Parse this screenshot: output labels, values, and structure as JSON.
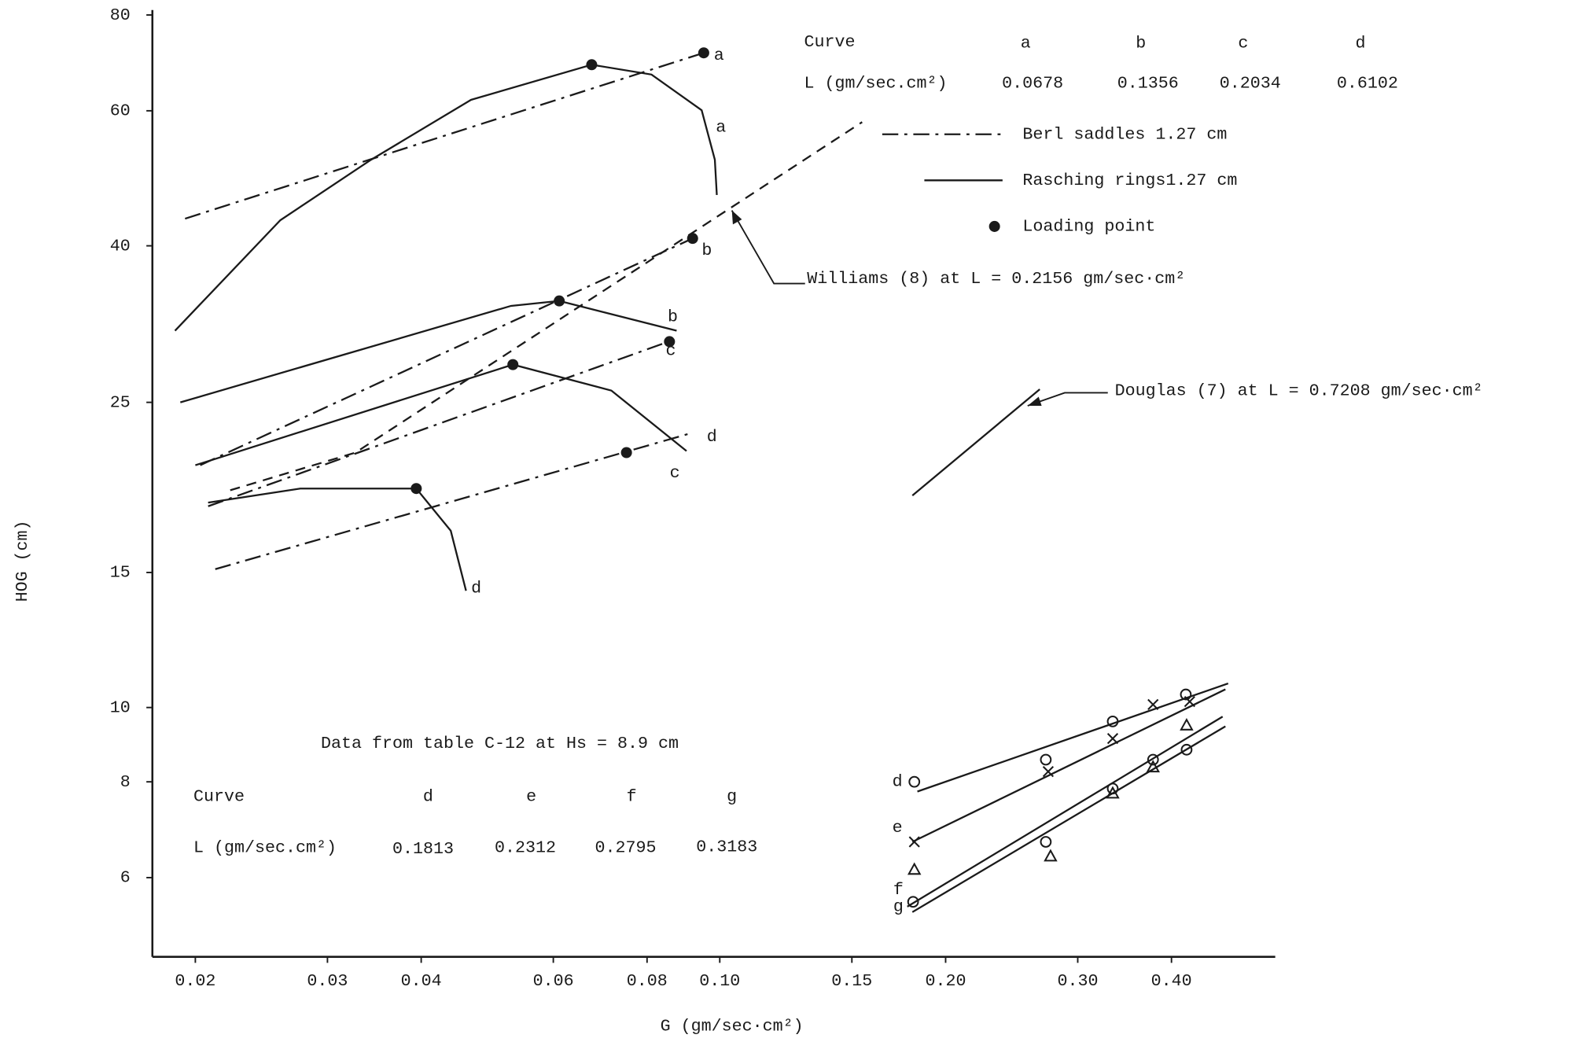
{
  "chart_data": {
    "type": "line",
    "xlabel": "G   (gm/sec·cm²)",
    "ylabel": "HOG (cm)",
    "xscale": "log",
    "yscale": "log",
    "color": "#1a1a1a",
    "xlim": [
      0.01753,
      0.55
    ],
    "ylim": [
      4.73,
      81.2
    ],
    "xticks": [
      0.02,
      0.03,
      0.04,
      0.06,
      0.08,
      {
        "value": 0.1,
        "label": "0.10"
      },
      0.15,
      {
        "value": 0.2,
        "label": "0.20"
      },
      {
        "value": 0.3,
        "label": "0.30"
      },
      {
        "value": 0.4,
        "label": "0.40"
      }
    ],
    "yticks": [
      80,
      60,
      40,
      25,
      15,
      10,
      8,
      6
    ],
    "series": [
      {
        "name": "a",
        "style": "dash-dot",
        "x": [
          0.01938,
          0.0952
        ],
        "values": [
          43.4,
          71.4
        ]
      },
      {
        "name": "b",
        "style": "dash-dot",
        "x": [
          0.0203,
          0.092
        ],
        "values": [
          20.7,
          40.9
        ]
      },
      {
        "name": "c",
        "style": "dash-dot",
        "x": [
          0.0208,
          0.0863
        ],
        "values": [
          18.3,
          30.1
        ]
      },
      {
        "name": "d",
        "style": "dash-dot",
        "x": [
          0.02126,
          0.0917
        ],
        "values": [
          15.15,
          22.8
        ]
      },
      {
        "name": "a",
        "style": "solid",
        "x": [
          0.01879,
          0.02596,
          0.0343,
          0.0466,
          0.0675,
          0.0811,
          0.0946,
          0.0985,
          0.0991
        ],
        "values": [
          31.0,
          43.2,
          51.8,
          62.0,
          68.9,
          66.9,
          60.1,
          51.8,
          46.6
        ]
      },
      {
        "name": "b",
        "style": "solid",
        "x": [
          0.0191,
          0.0527,
          0.0611,
          0.0876
        ],
        "values": [
          25.0,
          33.4,
          33.9,
          31.0
        ]
      },
      {
        "name": "c",
        "style": "solid",
        "x": [
          0.02,
          0.053,
          0.0717,
          0.0903
        ],
        "values": [
          20.7,
          28.0,
          25.9,
          21.6
        ]
      },
      {
        "name": "d",
        "style": "solid",
        "x": [
          0.0208,
          0.0276,
          0.0394,
          0.0438,
          0.0459
        ],
        "values": [
          18.5,
          19.3,
          19.3,
          17.0,
          14.2
        ]
      },
      {
        "style": "dashed",
        "x": [
          0.02226,
          0.0327,
          0.1548
        ],
        "values": [
          19.2,
          21.5,
          58.0
        ]
      },
      {
        "style": "solid",
        "x": [
          0.1806,
          0.267
        ],
        "values": [
          18.9,
          26.0
        ]
      },
      {
        "name": "d",
        "style": "solid",
        "x": [
          0.1834,
          0.476
        ],
        "values": [
          7.77,
          10.75
        ]
      },
      {
        "name": "e",
        "style": "solid",
        "x": [
          0.1806,
          0.472
        ],
        "values": [
          6.68,
          10.56
        ]
      },
      {
        "name": "f",
        "style": "solid",
        "x": [
          0.1778,
          0.468
        ],
        "values": [
          5.5,
          9.73
        ]
      },
      {
        "name": "g",
        "style": "solid",
        "x": [
          0.1806,
          0.472
        ],
        "values": [
          5.41,
          9.45
        ]
      },
      {
        "marker": "dot",
        "x": [
          0.0952,
          0.0675,
          0.092,
          0.0611,
          0.0857,
          0.053,
          0.0751,
          0.0394
        ],
        "values": [
          71.4,
          68.9,
          40.9,
          33.9,
          30.0,
          28.0,
          21.5,
          19.3
        ]
      },
      {
        "marker": "circle",
        "x": [
          0.1817,
          0.272,
          0.334,
          0.418
        ],
        "values": [
          8.0,
          8.55,
          9.59,
          10.4
        ]
      },
      {
        "marker": "cross",
        "x": [
          0.1817,
          0.274,
          0.334,
          0.378,
          0.423
        ],
        "values": [
          6.68,
          8.25,
          9.11,
          10.09,
          10.18
        ]
      },
      {
        "marker": "triangle",
        "x": [
          0.1817,
          0.276,
          0.334,
          0.378,
          0.419
        ],
        "values": [
          6.14,
          6.39,
          7.72,
          8.35,
          9.47
        ]
      },
      {
        "marker": "circle",
        "x": [
          0.181,
          0.272,
          0.334,
          0.378,
          0.419
        ],
        "values": [
          5.58,
          6.68,
          7.84,
          8.55,
          8.81
        ]
      }
    ],
    "legend": [
      {
        "label": "Berl saddles  1.27 cm",
        "style": "dash-dot"
      },
      {
        "label": "Rasching rings1.27 cm",
        "style": "solid"
      },
      {
        "label": "Loading point",
        "marker": "dot"
      }
    ],
    "table_top": {
      "header": "Curve",
      "curves": [
        "a",
        "b",
        "c",
        "d"
      ],
      "row_label": "L (gm/sec.cm²)",
      "row": [
        "0.0678",
        "0.1356",
        "0.2034",
        "0.6102"
      ]
    },
    "table_bottom": {
      "title": "Data from table C-12 at Hs = 8.9 cm",
      "header": "Curve",
      "curves": [
        "d",
        "e",
        "f",
        "g"
      ],
      "row_label": "L (gm/sec.cm²)",
      "row": [
        "0.1813",
        "0.2312",
        "0.2795",
        "0.3183"
      ]
    },
    "annotations": {
      "williams": "Williams (8) at L = 0.2156 gm/sec·cm²",
      "douglas": "Douglas (7) at L = 0.7208 gm/sec·cm²"
    }
  }
}
